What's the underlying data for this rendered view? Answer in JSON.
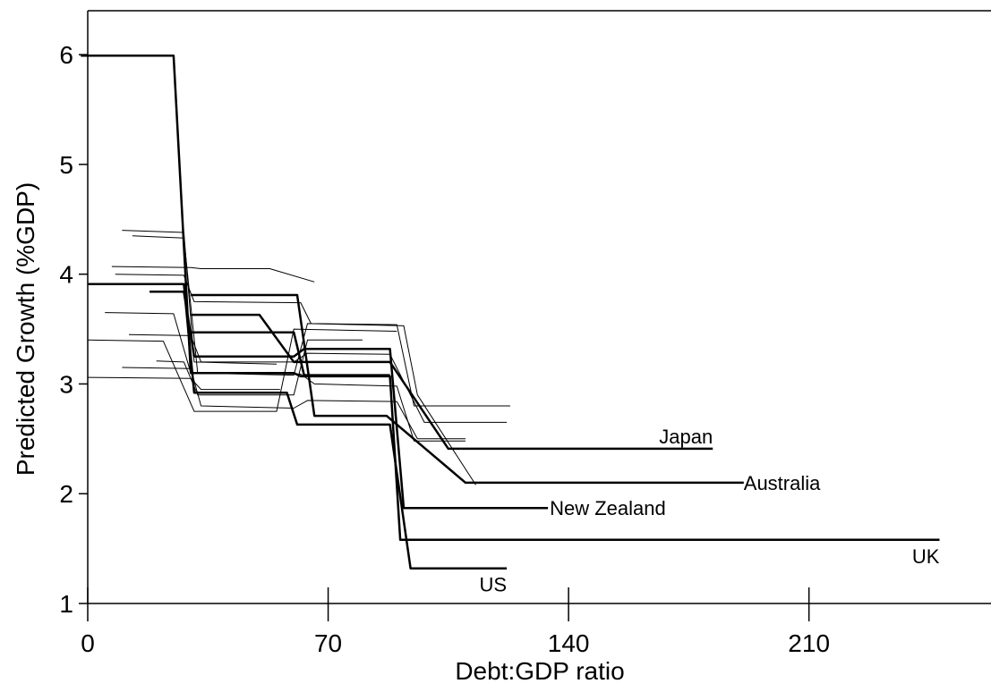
{
  "chart_data": {
    "type": "line",
    "x_label": "Debt:GDP ratio",
    "y_label": "Predicted Growth (%GDP)",
    "xlim": [
      0,
      263
    ],
    "ylim": [
      1,
      6.4
    ],
    "xticks": [
      0,
      70,
      140,
      210
    ],
    "yticks": [
      1,
      2,
      3,
      4,
      5,
      6
    ],
    "series": [
      {
        "color": "#000000",
        "linewidth": 1,
        "x": [
          10,
          28,
          31,
          55
        ],
        "y": [
          4.4,
          4.38,
          3.2,
          3.18
        ]
      },
      {
        "color": "#000000",
        "linewidth": 1,
        "x": [
          13,
          28,
          32,
          60,
          64,
          92,
          96,
          113
        ],
        "y": [
          4.35,
          4.33,
          3.1,
          3.08,
          3.55,
          3.53,
          2.9,
          2.08
        ]
      },
      {
        "color": "#000000",
        "linewidth": 1,
        "x": [
          7,
          30,
          33,
          53,
          66
        ],
        "y": [
          4.07,
          4.06,
          4.05,
          4.05,
          3.93
        ]
      },
      {
        "color": "#000000",
        "linewidth": 1,
        "x": [
          8,
          28,
          31,
          62,
          65,
          90,
          95,
          123
        ],
        "y": [
          4.0,
          3.99,
          3.75,
          3.74,
          3.55,
          3.54,
          2.8,
          2.8
        ]
      },
      {
        "color": "#000000",
        "linewidth": 1,
        "x": [
          5,
          25,
          30,
          62,
          66,
          90,
          95,
          110
        ],
        "y": [
          3.65,
          3.64,
          3.1,
          3.09,
          3.0,
          2.98,
          2.48,
          2.48
        ]
      },
      {
        "color": "#000000",
        "linewidth": 1,
        "x": [
          0,
          22,
          31,
          55,
          60,
          90
        ],
        "y": [
          3.4,
          3.39,
          2.75,
          2.75,
          3.5,
          3.48
        ]
      },
      {
        "color": "#000000",
        "linewidth": 1,
        "x": [
          12,
          30,
          33,
          60,
          64,
          88,
          98,
          122
        ],
        "y": [
          3.45,
          3.44,
          3.2,
          3.2,
          3.28,
          3.27,
          2.65,
          2.65
        ]
      },
      {
        "color": "#000000",
        "linewidth": 1,
        "x": [
          20,
          28,
          32,
          60,
          64,
          80
        ],
        "y": [
          3.21,
          3.2,
          2.9,
          2.9,
          3.4,
          3.4
        ]
      },
      {
        "color": "#000000",
        "linewidth": 1,
        "x": [
          0,
          30,
          33,
          56
        ],
        "y": [
          3.06,
          3.05,
          2.95,
          2.95
        ]
      },
      {
        "color": "#000000",
        "linewidth": 1,
        "x": [
          10,
          30,
          33,
          60,
          64,
          90,
          96,
          110
        ],
        "y": [
          3.15,
          3.14,
          2.8,
          2.78,
          2.85,
          2.84,
          2.5,
          2.5
        ]
      },
      {
        "name": "UK",
        "color": "#000000",
        "linewidth": 2.5,
        "x": [
          -2,
          25,
          30,
          60,
          62,
          88,
          91,
          248
        ],
        "y": [
          5.99,
          5.99,
          3.1,
          3.1,
          3.07,
          3.07,
          1.58,
          1.58
        ]
      },
      {
        "name": "US",
        "color": "#000000",
        "linewidth": 2.5,
        "x": [
          0,
          28,
          31,
          58,
          61,
          88,
          94,
          122
        ],
        "y": [
          3.91,
          3.91,
          2.92,
          2.92,
          2.63,
          2.63,
          1.32,
          1.32
        ]
      },
      {
        "name": "New Zealand",
        "color": "#000000",
        "linewidth": 2.5,
        "x": [
          18,
          28,
          31,
          60,
          63,
          88,
          92,
          134
        ],
        "y": [
          3.84,
          3.84,
          3.25,
          3.25,
          3.32,
          3.32,
          1.87,
          1.87
        ]
      },
      {
        "name": "Japan",
        "color": "#000000",
        "linewidth": 2.5,
        "x": [
          30,
          50,
          60,
          88,
          105,
          182
        ],
        "y": [
          3.63,
          3.63,
          3.2,
          3.2,
          2.41,
          2.41
        ]
      },
      {
        "name": "Australia",
        "color": "#000000",
        "linewidth": 2.5,
        "x": [
          30,
          61,
          66,
          87,
          110,
          191
        ],
        "y": [
          3.81,
          3.81,
          2.71,
          2.71,
          2.1,
          2.1
        ]
      },
      {
        "color": "#000000",
        "linewidth": 2.5,
        "x": [
          30,
          60,
          63,
          88
        ],
        "y": [
          3.47,
          3.47,
          3.08,
          3.08
        ]
      }
    ]
  }
}
